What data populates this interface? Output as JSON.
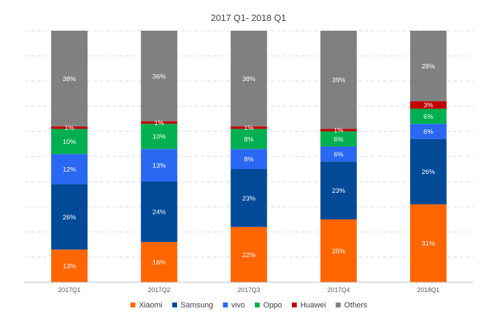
{
  "chart_data": {
    "type": "bar",
    "stacked": true,
    "title": "2017 Q1- 2018 Q1",
    "categories": [
      "2017Q1",
      "2017Q2",
      "2017Q3",
      "2017Q4",
      "2018Q1"
    ],
    "series": [
      {
        "name": "Xiaomi",
        "color": "#ff6600",
        "values": [
          13,
          16,
          22,
          25,
          31
        ]
      },
      {
        "name": "Samsung",
        "color": "#004a98",
        "values": [
          26,
          24,
          23,
          23,
          26
        ]
      },
      {
        "name": "vivo",
        "color": "#2a67f2",
        "values": [
          12,
          13,
          8,
          6,
          6
        ]
      },
      {
        "name": "Oppo",
        "color": "#00b050",
        "values": [
          10,
          10,
          8,
          6,
          6
        ]
      },
      {
        "name": "Huawei",
        "color": "#c00000",
        "values": [
          1,
          1,
          1,
          1,
          3
        ]
      },
      {
        "name": "Others",
        "color": "#808080",
        "values": [
          38,
          36,
          38,
          39,
          28
        ]
      }
    ],
    "ylim": [
      0,
      100
    ],
    "grid": true,
    "legend_position": "bottom",
    "value_format": "percent"
  }
}
